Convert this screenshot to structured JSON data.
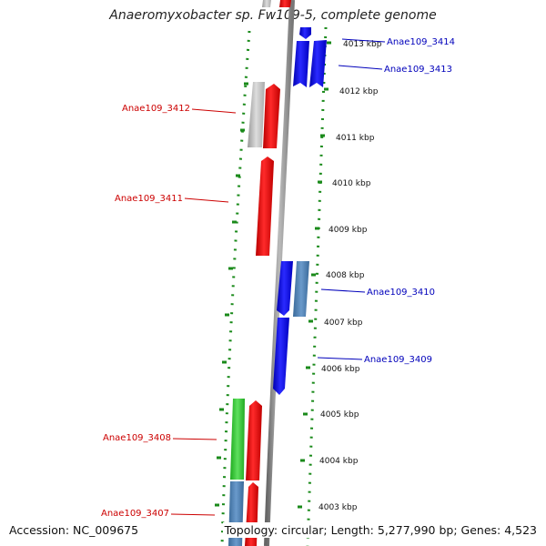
{
  "title": "Anaeromyxobacter sp. Fw109-5, complete genome",
  "footer": {
    "accession": "Accession: NC_009675",
    "summary": "Topology: circular; Length: 5,277,990 bp; Genes: 4,523"
  },
  "colors": {
    "backbone": "#888888",
    "ring_dots": "#1a8a1a",
    "label_forward": "#cc0000",
    "label_reverse": "#0000bb"
  },
  "ticks": [
    {
      "label": "4013 kbp"
    },
    {
      "label": "4012 kbp"
    },
    {
      "label": "4011 kbp"
    },
    {
      "label": "4010 kbp"
    },
    {
      "label": "4009 kbp"
    },
    {
      "label": "4008 kbp"
    },
    {
      "label": "4007 kbp"
    },
    {
      "label": "4006 kbp"
    },
    {
      "label": "4005 kbp"
    },
    {
      "label": "4004 kbp"
    },
    {
      "label": "4003 kbp"
    }
  ],
  "genes": [
    {
      "label": "Anae109_3414",
      "strand": "reverse",
      "color": "#0000ff"
    },
    {
      "label": "Anae109_3413",
      "strand": "reverse",
      "color": "#0000ff"
    },
    {
      "label": "Anae109_3412",
      "strand": "forward",
      "color": "#ff0000"
    },
    {
      "label": "Anae109_3411",
      "strand": "forward",
      "color": "#ff0000"
    },
    {
      "label": "Anae109_3410",
      "strand": "reverse",
      "color": "#0000ff"
    },
    {
      "label": "Anae109_3409",
      "strand": "reverse",
      "color": "#0000ff"
    },
    {
      "label": "Anae109_3408",
      "strand": "forward",
      "color": "#ff0000"
    },
    {
      "label": "Anae109_3407",
      "strand": "forward",
      "color": "#ff0000"
    }
  ]
}
